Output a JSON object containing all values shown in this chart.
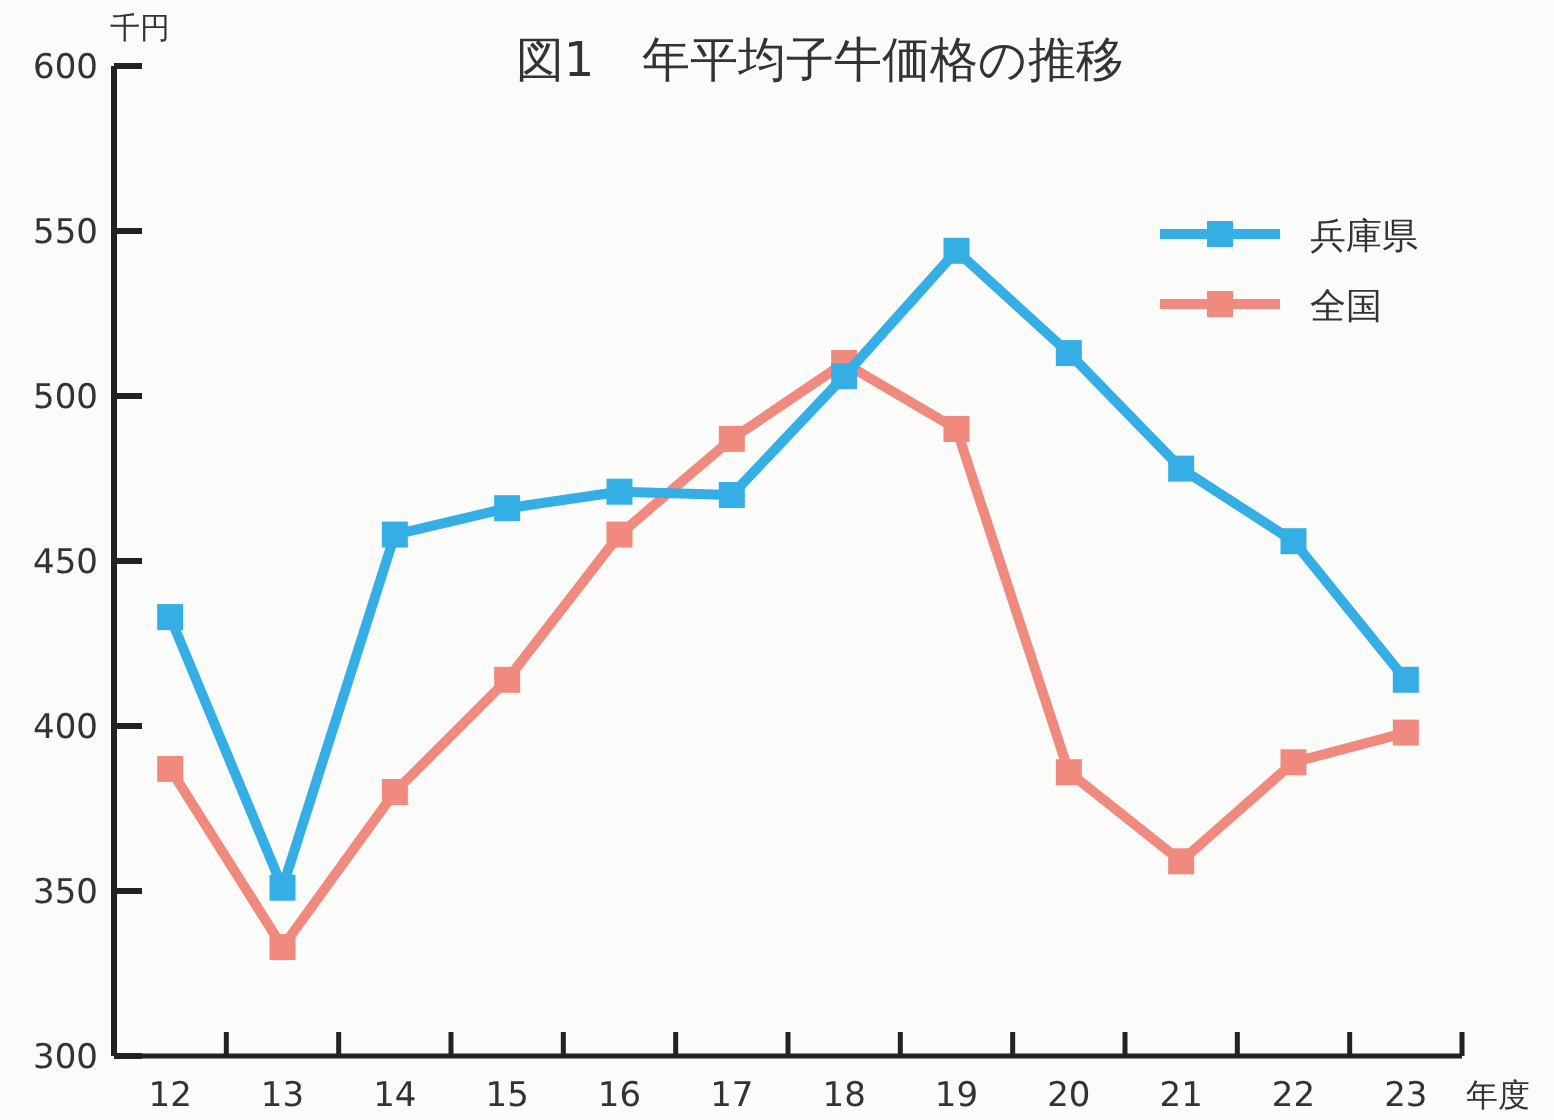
{
  "chart_data": {
    "type": "line",
    "title": "図1　年平均子牛価格の推移",
    "ylabel": "千円",
    "xlabel": "年度",
    "categories": [
      "12",
      "13",
      "14",
      "15",
      "16",
      "17",
      "18",
      "19",
      "20",
      "21",
      "22",
      "23"
    ],
    "ylim": [
      300,
      600
    ],
    "yticks": [
      300,
      350,
      400,
      450,
      500,
      550,
      600
    ],
    "grid": false,
    "legend": "top right",
    "marker": "square",
    "line_style": "solid",
    "series": [
      {
        "name": "兵庫県",
        "color": "#35aee6",
        "values": [
          433,
          351,
          458,
          466,
          471,
          470,
          506,
          544,
          513,
          478,
          456,
          414
        ]
      },
      {
        "name": "全国",
        "color": "#f08a7e",
        "values": [
          387,
          333,
          380,
          414,
          458,
          487,
          510,
          490,
          386,
          359,
          389,
          398
        ]
      }
    ]
  }
}
